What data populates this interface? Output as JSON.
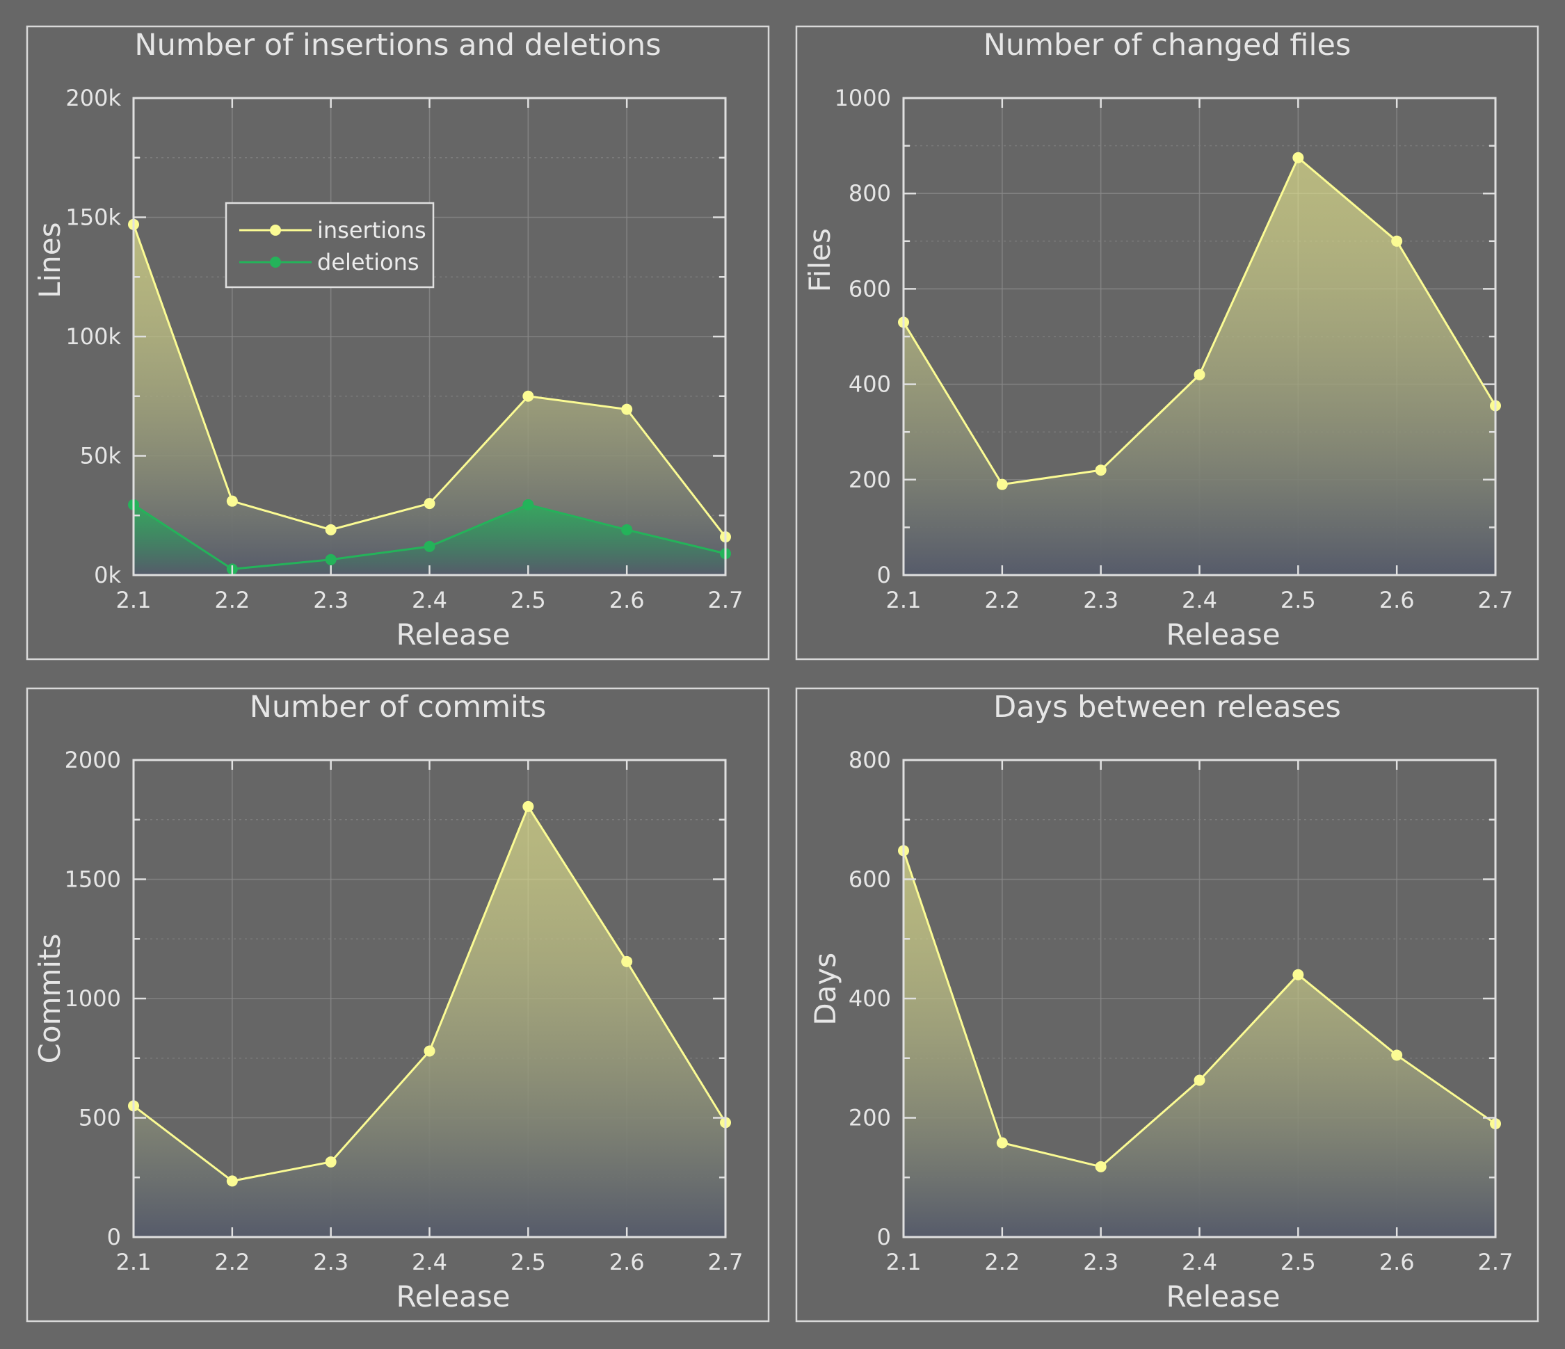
{
  "colors": {
    "insertions": "#fbfb94",
    "deletions": "#24b35a",
    "fill_bottom": "#565b6a"
  },
  "chart_data": [
    {
      "type": "area",
      "title": "Number of insertions and deletions",
      "xlabel": "Release",
      "ylabel": "Lines",
      "categories": [
        "2.1",
        "2.2",
        "2.3",
        "2.4",
        "2.5",
        "2.6",
        "2.7"
      ],
      "ylim": [
        0,
        200000
      ],
      "yticks": [
        0,
        50000,
        100000,
        150000,
        200000
      ],
      "ytick_labels": [
        "0k",
        "50k",
        "100k",
        "150k",
        "200k"
      ],
      "grid": true,
      "legend": "upper-left",
      "series": [
        {
          "name": "insertions",
          "color_key": "insertions",
          "values": [
            147000,
            31000,
            19000,
            30000,
            75000,
            69500,
            16000
          ]
        },
        {
          "name": "deletions",
          "color_key": "deletions",
          "values": [
            29500,
            2500,
            6500,
            12000,
            29500,
            19000,
            9000
          ]
        }
      ]
    },
    {
      "type": "area",
      "title": "Number of changed files",
      "xlabel": "Release",
      "ylabel": "Files",
      "categories": [
        "2.1",
        "2.2",
        "2.3",
        "2.4",
        "2.5",
        "2.6",
        "2.7"
      ],
      "ylim": [
        0,
        1000
      ],
      "yticks": [
        0,
        200,
        400,
        600,
        800,
        1000
      ],
      "ytick_labels": [
        "0",
        "200",
        "400",
        "600",
        "800",
        "1000"
      ],
      "grid": true,
      "series": [
        {
          "name": "files",
          "color_key": "insertions",
          "values": [
            530,
            190,
            220,
            420,
            875,
            700,
            355
          ]
        }
      ]
    },
    {
      "type": "area",
      "title": "Number of commits",
      "xlabel": "Release",
      "ylabel": "Commits",
      "categories": [
        "2.1",
        "2.2",
        "2.3",
        "2.4",
        "2.5",
        "2.6",
        "2.7"
      ],
      "ylim": [
        0,
        2000
      ],
      "yticks": [
        0,
        500,
        1000,
        1500,
        2000
      ],
      "ytick_labels": [
        "0",
        "500",
        "1000",
        "1500",
        "2000"
      ],
      "grid": true,
      "series": [
        {
          "name": "commits",
          "color_key": "insertions",
          "values": [
            550,
            235,
            315,
            780,
            1805,
            1155,
            480
          ]
        }
      ]
    },
    {
      "type": "area",
      "title": "Days between releases",
      "xlabel": "Release",
      "ylabel": "Days",
      "categories": [
        "2.1",
        "2.2",
        "2.3",
        "2.4",
        "2.5",
        "2.6",
        "2.7"
      ],
      "ylim": [
        0,
        800
      ],
      "yticks": [
        0,
        200,
        400,
        600,
        800
      ],
      "ytick_labels": [
        "0",
        "200",
        "400",
        "600",
        "800"
      ],
      "grid": true,
      "series": [
        {
          "name": "days",
          "color_key": "insertions",
          "values": [
            648,
            158,
            118,
            263,
            440,
            305,
            190
          ]
        }
      ]
    }
  ]
}
